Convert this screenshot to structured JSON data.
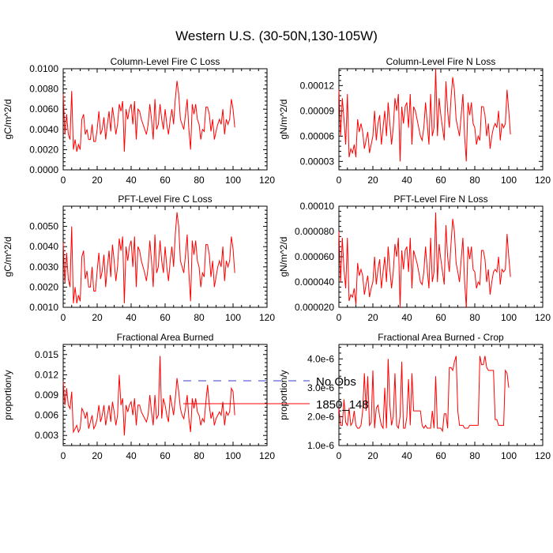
{
  "page": {
    "title": "Western U.S. (30-50N,130-105W)"
  },
  "legend": {
    "entries": [
      {
        "label": "No Obs",
        "color": "#3b3bcc",
        "style": "dashed"
      },
      {
        "label": "1850_148",
        "color": "#ff0000",
        "style": "solid"
      }
    ]
  },
  "chart_data": [
    {
      "type": "line",
      "title": "Column-Level Fire C Loss",
      "ylabel": "gC/m^2/d",
      "xlabel": "",
      "xlim": [
        0,
        120
      ],
      "ylim": [
        0.0,
        0.01
      ],
      "xticks": [
        0,
        20,
        40,
        60,
        80,
        100,
        120
      ],
      "xtick_labels": [
        "0",
        "20",
        "40",
        "60",
        "80",
        "100",
        "120"
      ],
      "yticks": [
        0.0,
        0.002,
        0.004,
        0.006,
        0.008,
        0.01
      ],
      "ytick_labels": [
        "0.0000",
        "0.0020",
        "0.0040",
        "0.0060",
        "0.0080",
        "0.0100"
      ],
      "series": [
        {
          "name": "1850_148",
          "color": "#ff0000",
          "values": [
            0.0075,
            0.0035,
            0.0055,
            0.0035,
            0.003,
            0.0078,
            0.002,
            0.003,
            0.0018,
            0.0025,
            0.002,
            0.005,
            0.0055,
            0.0035,
            0.004,
            0.003,
            0.003,
            0.0045,
            0.0028,
            0.0028,
            0.004,
            0.0058,
            0.0035,
            0.004,
            0.0052,
            0.003,
            0.0045,
            0.0058,
            0.0038,
            0.0062,
            0.005,
            0.0035,
            0.0045,
            0.0065,
            0.0058,
            0.0068,
            0.0018,
            0.006,
            0.005,
            0.006,
            0.0065,
            0.0045,
            0.0068,
            0.003,
            0.006,
            0.0058,
            0.005,
            0.0045,
            0.004,
            0.0035,
            0.0045,
            0.0065,
            0.005,
            0.003,
            0.007,
            0.004,
            0.0045,
            0.0065,
            0.005,
            0.004,
            0.006,
            0.0045,
            0.0035,
            0.005,
            0.006,
            0.0045,
            0.007,
            0.0088,
            0.0075,
            0.005,
            0.0045,
            0.004,
            0.0055,
            0.007,
            0.004,
            0.002,
            0.0065,
            0.0055,
            0.0065,
            0.005,
            0.0045,
            0.003,
            0.004,
            0.0038,
            0.0062,
            0.0062,
            0.0055,
            0.0038,
            0.005,
            0.003,
            0.0038,
            0.0045,
            0.005,
            0.0045,
            0.006,
            0.0035,
            0.005,
            0.0045,
            0.005,
            0.007,
            0.006,
            0.0042
          ]
        }
      ]
    },
    {
      "type": "line",
      "title": "Column-Level Fire N Loss",
      "ylabel": "gN/m^2/d",
      "xlabel": "",
      "xlim": [
        0,
        120
      ],
      "ylim": [
        2e-05,
        0.00014
      ],
      "xticks": [
        0,
        20,
        40,
        60,
        80,
        100,
        120
      ],
      "xtick_labels": [
        "0",
        "20",
        "40",
        "60",
        "80",
        "100",
        "120"
      ],
      "yticks": [
        3e-05,
        6e-05,
        9e-05,
        0.00012
      ],
      "ytick_labels": [
        "0.00003",
        "0.00006",
        "0.00009",
        "0.00012"
      ],
      "series": [
        {
          "name": "1850_148",
          "color": "#ff0000",
          "values": [
            0.000115,
            6e-05,
            0.000105,
            8e-05,
            5e-05,
            0.00011,
            3.5e-05,
            4.5e-05,
            4e-05,
            5e-05,
            3.5e-05,
            8e-05,
            6.5e-05,
            7.5e-05,
            6.5e-05,
            4.5e-05,
            5.5e-05,
            6.5e-05,
            4e-05,
            5e-05,
            6e-05,
            9e-05,
            5.5e-05,
            7.5e-05,
            8.5e-05,
            5e-05,
            7e-05,
            9e-05,
            6e-05,
            0.0001,
            7.5e-05,
            5e-05,
            7e-05,
            0.000105,
            9e-05,
            0.00011,
            3e-05,
            9.5e-05,
            7.5e-05,
            9.5e-05,
            0.0001,
            7e-05,
            0.00011,
            5e-05,
            9.5e-05,
            9e-05,
            8e-05,
            7e-05,
            6e-05,
            5.5e-05,
            7e-05,
            0.0001,
            7.5e-05,
            5e-05,
            0.00011,
            6e-05,
            7e-05,
            0.00014,
            6e-05,
            0.000105,
            8.5e-05,
            7e-05,
            5.5e-05,
            0.000125,
            9e-05,
            7e-05,
            0.000105,
            0.00013,
            0.000115,
            8e-05,
            7e-05,
            6e-05,
            8.5e-05,
            0.00011,
            6e-05,
            3e-05,
            0.0001,
            8.5e-05,
            0.0001,
            7.5e-05,
            7e-05,
            5e-05,
            6e-05,
            5.5e-05,
            9.5e-05,
            9.5e-05,
            8.5e-05,
            6e-05,
            7.5e-05,
            4.5e-05,
            6e-05,
            7e-05,
            7.5e-05,
            7e-05,
            9e-05,
            5.5e-05,
            7.5e-05,
            7e-05,
            7.5e-05,
            0.000115,
            9e-05,
            6.2e-05
          ]
        }
      ]
    },
    {
      "type": "line",
      "title": "PFT-Level Fire C Loss",
      "ylabel": "gC/m^2/d",
      "xlabel": "",
      "xlim": [
        0,
        120
      ],
      "ylim": [
        0.001,
        0.006
      ],
      "xticks": [
        0,
        20,
        40,
        60,
        80,
        100,
        120
      ],
      "xtick_labels": [
        "0",
        "20",
        "40",
        "60",
        "80",
        "100",
        "120"
      ],
      "yticks": [
        0.001,
        0.002,
        0.003,
        0.004,
        0.005
      ],
      "ytick_labels": [
        "0.0010",
        "0.0020",
        "0.0030",
        "0.0040",
        "0.0050"
      ],
      "series": [
        {
          "name": "1850_148",
          "color": "#ff0000",
          "values": [
            0.0042,
            0.0022,
            0.0037,
            0.0024,
            0.002,
            0.005,
            0.0012,
            0.002,
            0.0012,
            0.0016,
            0.0013,
            0.0035,
            0.0038,
            0.0024,
            0.0028,
            0.002,
            0.002,
            0.003,
            0.0018,
            0.0018,
            0.0028,
            0.0037,
            0.0024,
            0.0028,
            0.0036,
            0.002,
            0.003,
            0.0038,
            0.0025,
            0.0041,
            0.0033,
            0.0023,
            0.003,
            0.0044,
            0.0038,
            0.0045,
            0.0012,
            0.004,
            0.0033,
            0.004,
            0.0043,
            0.003,
            0.0045,
            0.002,
            0.004,
            0.0038,
            0.0033,
            0.003,
            0.0027,
            0.0023,
            0.003,
            0.0043,
            0.0033,
            0.002,
            0.0046,
            0.0027,
            0.003,
            0.0043,
            0.0033,
            0.0027,
            0.004,
            0.003,
            0.0023,
            0.0033,
            0.004,
            0.003,
            0.0046,
            0.0057,
            0.005,
            0.0033,
            0.003,
            0.0027,
            0.0036,
            0.0046,
            0.0027,
            0.0013,
            0.0043,
            0.0036,
            0.0043,
            0.0033,
            0.003,
            0.002,
            0.0027,
            0.0025,
            0.0041,
            0.0041,
            0.0036,
            0.0025,
            0.0033,
            0.002,
            0.0025,
            0.003,
            0.0033,
            0.003,
            0.004,
            0.0023,
            0.0033,
            0.003,
            0.0033,
            0.0045,
            0.0039,
            0.0027
          ]
        }
      ]
    },
    {
      "type": "line",
      "title": "PFT-Level Fire N Loss",
      "ylabel": "gN/m^2/d",
      "xlabel": "",
      "xlim": [
        0,
        120
      ],
      "ylim": [
        2e-05,
        0.0001
      ],
      "xticks": [
        0,
        20,
        40,
        60,
        80,
        100,
        120
      ],
      "xtick_labels": [
        "0",
        "20",
        "40",
        "60",
        "80",
        "100",
        "120"
      ],
      "yticks": [
        2e-05,
        4e-05,
        6e-05,
        8e-05,
        0.0001
      ],
      "ytick_labels": [
        "0.000020",
        "0.000040",
        "0.000060",
        "0.000080",
        "0.00010"
      ],
      "series": [
        {
          "name": "1850_148",
          "color": "#ff0000",
          "values": [
            8e-05,
            4e-05,
            7.5e-05,
            5e-05,
            3.5e-05,
            7.5e-05,
            2.5e-05,
            3e-05,
            2.8e-05,
            3.5e-05,
            2.2e-05,
            5.5e-05,
            4.5e-05,
            5e-05,
            4.5e-05,
            3e-05,
            3.8e-05,
            4.5e-05,
            2.8e-05,
            3.5e-05,
            4e-05,
            6e-05,
            3.8e-05,
            5e-05,
            5.8e-05,
            3.5e-05,
            4.8e-05,
            6e-05,
            4e-05,
            6.8e-05,
            5e-05,
            3.5e-05,
            4.8e-05,
            7e-05,
            6e-05,
            7.5e-05,
            2e-05,
            6.5e-05,
            5e-05,
            6.5e-05,
            6.8e-05,
            4.8e-05,
            7.5e-05,
            3.5e-05,
            6.5e-05,
            6e-05,
            5.5e-05,
            4.8e-05,
            4e-05,
            3.8e-05,
            4.8e-05,
            6.8e-05,
            5e-05,
            3.5e-05,
            7.5e-05,
            4e-05,
            4.8e-05,
            9.5e-05,
            4e-05,
            7e-05,
            5.8e-05,
            4.8e-05,
            3.8e-05,
            8.5e-05,
            6e-05,
            4.8e-05,
            7e-05,
            9e-05,
            8e-05,
            5.5e-05,
            4.8e-05,
            4e-05,
            5.8e-05,
            7.5e-05,
            4e-05,
            2e-05,
            6.8e-05,
            5.8e-05,
            6.8e-05,
            5e-05,
            4.8e-05,
            3.5e-05,
            4e-05,
            3.8e-05,
            6.5e-05,
            6.5e-05,
            5.8e-05,
            4e-05,
            5e-05,
            3e-05,
            4e-05,
            4.8e-05,
            5e-05,
            4.8e-05,
            6e-05,
            3.8e-05,
            5e-05,
            4.8e-05,
            5e-05,
            7.8e-05,
            6e-05,
            4.4e-05
          ]
        }
      ]
    },
    {
      "type": "line",
      "title": "Fractional Area Burned",
      "ylabel": "proportion/y",
      "xlabel": "",
      "xlim": [
        0,
        120
      ],
      "ylim": [
        0.0015,
        0.0165
      ],
      "xticks": [
        0,
        20,
        40,
        60,
        80,
        100,
        120
      ],
      "xtick_labels": [
        "0",
        "20",
        "40",
        "60",
        "80",
        "100",
        "120"
      ],
      "yticks": [
        0.003,
        0.006,
        0.009,
        0.012,
        0.015
      ],
      "ytick_labels": [
        "0.003",
        "0.006",
        "0.009",
        "0.012",
        "0.015"
      ],
      "series": [
        {
          "name": "1850_148",
          "color": "#ff0000",
          "values": [
            0.011,
            0.0075,
            0.01,
            0.0075,
            0.007,
            0.0095,
            0.0035,
            0.004,
            0.0045,
            0.0035,
            0.004,
            0.007,
            0.0065,
            0.0055,
            0.0065,
            0.004,
            0.005,
            0.006,
            0.004,
            0.0045,
            0.0055,
            0.0075,
            0.005,
            0.006,
            0.0075,
            0.0045,
            0.006,
            0.0075,
            0.005,
            0.008,
            0.0065,
            0.0045,
            0.006,
            0.012,
            0.0075,
            0.0085,
            0.003,
            0.0075,
            0.0065,
            0.0075,
            0.008,
            0.006,
            0.0085,
            0.0045,
            0.0075,
            0.0075,
            0.0065,
            0.006,
            0.0055,
            0.005,
            0.006,
            0.009,
            0.0065,
            0.0045,
            0.009,
            0.0055,
            0.006,
            0.0148,
            0.0055,
            0.0085,
            0.0075,
            0.006,
            0.005,
            0.009,
            0.0075,
            0.006,
            0.0085,
            0.0115,
            0.0095,
            0.007,
            0.006,
            0.0055,
            0.007,
            0.009,
            0.0055,
            0.0035,
            0.0085,
            0.007,
            0.0085,
            0.0065,
            0.006,
            0.0045,
            0.0055,
            0.005,
            0.008,
            0.0105,
            0.0075,
            0.0055,
            0.0065,
            0.0045,
            0.0055,
            0.006,
            0.0065,
            0.006,
            0.008,
            0.0045,
            0.0065,
            0.006,
            0.0065,
            0.01,
            0.0095,
            0.006
          ]
        }
      ]
    },
    {
      "type": "line",
      "title": "Fractional Area Burned - Crop",
      "ylabel": "proportion/y",
      "xlabel": "",
      "xlim": [
        0,
        120
      ],
      "ylim": [
        1e-06,
        4.5e-06
      ],
      "xticks": [
        0,
        20,
        40,
        60,
        80,
        100,
        120
      ],
      "xtick_labels": [
        "0",
        "20",
        "40",
        "60",
        "80",
        "100",
        "120"
      ],
      "yticks": [
        1e-06,
        2e-06,
        3e-06,
        4e-06
      ],
      "ytick_labels": [
        "1.0e-6",
        "2.0e-6",
        "3.0e-6",
        "4.0e-6"
      ],
      "series": [
        {
          "name": "1850_148",
          "color": "#ff0000",
          "values": [
            2.3e-06,
            1.7e-06,
            1.7e-06,
            2.6e-06,
            1.8e-06,
            1.7e-06,
            2.3e-06,
            1.7e-06,
            1.8e-06,
            2.2e-06,
            1.7e-06,
            1.6e-06,
            1.6e-06,
            1.7e-06,
            2.2e-06,
            3.5e-06,
            2.2e-06,
            3.4e-06,
            1.7e-06,
            1.8e-06,
            3.6e-06,
            1.6e-06,
            2.3e-06,
            2.4e-06,
            2e-06,
            1.7e-06,
            1.6e-06,
            3e-06,
            1.6e-06,
            4e-06,
            2.4e-06,
            1.7e-06,
            2e-06,
            3.5e-06,
            1.7e-06,
            1.6e-06,
            2e-06,
            3.9e-06,
            1.6e-06,
            1.6e-06,
            2e-06,
            3.3e-06,
            1.7e-06,
            3.5e-06,
            2.2e-06,
            2.2e-06,
            2.2e-06,
            2.2e-06,
            2.2e-06,
            1.7e-06,
            1.6e-06,
            1.7e-06,
            1.6e-06,
            1.6e-06,
            1.6e-06,
            2.2e-06,
            1.6e-06,
            3.4e-06,
            1.6e-06,
            1.6e-06,
            1.6e-06,
            1.5e-06,
            2.1e-06,
            2.1e-06,
            1.6e-06,
            3.7e-06,
            3.7e-06,
            3.6e-06,
            3.9e-06,
            4.1e-06,
            2.2e-06,
            1.7e-06,
            1.7e-06,
            1.7e-06,
            1.6e-06,
            1.6e-06,
            1.6e-06,
            1.7e-06,
            1.7e-06,
            1.7e-06,
            1.7e-06,
            1.7e-06,
            1.7e-06,
            4.1e-06,
            3.8e-06,
            3.8e-06,
            4.1e-06,
            3.7e-06,
            3.6e-06,
            3.6e-06,
            3.6e-06,
            3.6e-06,
            1.9e-06,
            1.9e-06,
            1.7e-06,
            1.7e-06,
            1.7e-06,
            1.7e-06,
            3.6e-06,
            3.5e-06,
            3e-06
          ]
        }
      ]
    }
  ]
}
